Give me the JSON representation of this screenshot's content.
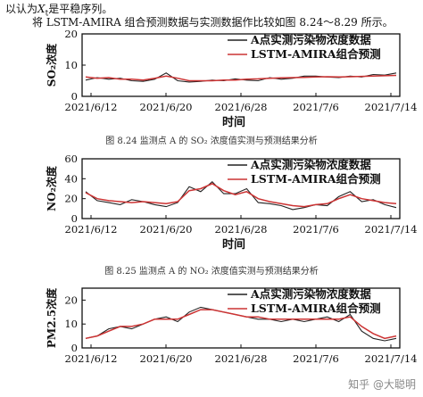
{
  "page": {
    "line1": "以认为X_t是平稳序列。",
    "line1_parts": {
      "pre": "以认为",
      "var": "X",
      "sub": "t",
      "post": "是平稳序列。"
    },
    "line2": "将 LSTM-AMIRA 组合预测数据与实测数据作比较如图 8.24～8.29 所示。",
    "watermark": "知乎 @大聪明"
  },
  "chart_data": [
    {
      "type": "line",
      "caption": "图 8.24  监测点 A 的 SO₂ 浓度值实测与预测结果分析",
      "xlabel": "时间",
      "ylabel": "SO₂浓度",
      "ylim": [
        0,
        20
      ],
      "yticks": [
        "0",
        "10",
        "20"
      ],
      "xticks": [
        "2021/6/12",
        "2021/6/20",
        "2021/6/28",
        "2021/7/6",
        "2021/7/14"
      ],
      "legend_position": "top-right",
      "colors": {
        "actual": "#222222",
        "pred": "#cc3333"
      },
      "series": [
        {
          "name": "A点实测污染物浓度数据",
          "values": [
            5.2,
            6.0,
            5.5,
            5.8,
            5.0,
            4.8,
            5.5,
            7.5,
            5.0,
            4.6,
            4.8,
            5.2,
            5.0,
            5.6,
            5.2,
            5.0,
            6.0,
            5.5,
            5.8,
            6.5,
            6.5,
            6.2,
            6.0,
            6.5,
            6.2,
            7.0,
            6.8,
            7.5
          ]
        },
        {
          "name": "LSTM-AMIRA组合预测",
          "values": [
            6.2,
            5.8,
            6.0,
            5.5,
            5.5,
            5.2,
            5.8,
            6.5,
            5.8,
            5.0,
            5.0,
            5.0,
            5.2,
            5.2,
            5.5,
            5.6,
            5.8,
            5.9,
            6.0,
            6.1,
            6.2,
            6.3,
            6.2,
            6.3,
            6.4,
            6.5,
            6.6,
            6.7
          ]
        }
      ]
    },
    {
      "type": "line",
      "caption": "图 8.25  监测点 A 的 NO₂ 浓度值实测与预测结果分析",
      "xlabel": "时间",
      "ylabel": "NO₂浓度",
      "ylim": [
        0,
        60
      ],
      "yticks": [
        "0",
        "20",
        "40",
        "60"
      ],
      "xticks": [
        "2021/6/12",
        "2021/6/20",
        "2021/6/28",
        "2021/7/6",
        "2021/7/14"
      ],
      "legend_position": "top-right",
      "colors": {
        "actual": "#222222",
        "pred": "#cc3333"
      },
      "series": [
        {
          "name": "A点实测污染物浓度数据",
          "values": [
            27,
            18,
            16,
            14,
            19,
            17,
            14,
            12,
            16,
            32,
            27,
            37,
            25,
            25,
            30,
            16,
            15,
            13,
            9,
            11,
            14,
            13,
            22,
            27,
            17,
            19,
            14,
            11
          ]
        },
        {
          "name": "LSTM-AMIRA组合预测",
          "values": [
            26,
            20,
            18,
            17,
            16,
            17,
            16,
            15,
            17,
            28,
            30,
            35,
            28,
            24,
            27,
            20,
            17,
            15,
            13,
            12,
            14,
            15,
            20,
            24,
            20,
            18,
            16,
            15
          ]
        }
      ]
    },
    {
      "type": "line",
      "caption": "",
      "xlabel": "",
      "ylabel": "PM2.5浓度",
      "ylim": [
        0,
        25
      ],
      "yticks": [
        "0",
        "10",
        "20"
      ],
      "xticks": [
        "2021/6/12",
        "2021/6/20",
        "2021/6/28",
        "2021/7/6",
        "2021/7/14"
      ],
      "legend_position": "top-right",
      "colors": {
        "actual": "#222222",
        "pred": "#cc3333"
      },
      "series": [
        {
          "name": "A点实测污染物浓度数据",
          "values": [
            4,
            5,
            8,
            9,
            8,
            10,
            12,
            13,
            11,
            15,
            17,
            16,
            15,
            14,
            13,
            12,
            12,
            11,
            12,
            11,
            12,
            13,
            11,
            14,
            7,
            4,
            3,
            4
          ]
        },
        {
          "name": "LSTM-AMIRA组合预测",
          "values": [
            4,
            5,
            7,
            9,
            9,
            10,
            12,
            12,
            12,
            14,
            16,
            16,
            15,
            14,
            13,
            13,
            12,
            12,
            12,
            12,
            12,
            12,
            12,
            13,
            9,
            6,
            4,
            5
          ]
        }
      ]
    }
  ]
}
